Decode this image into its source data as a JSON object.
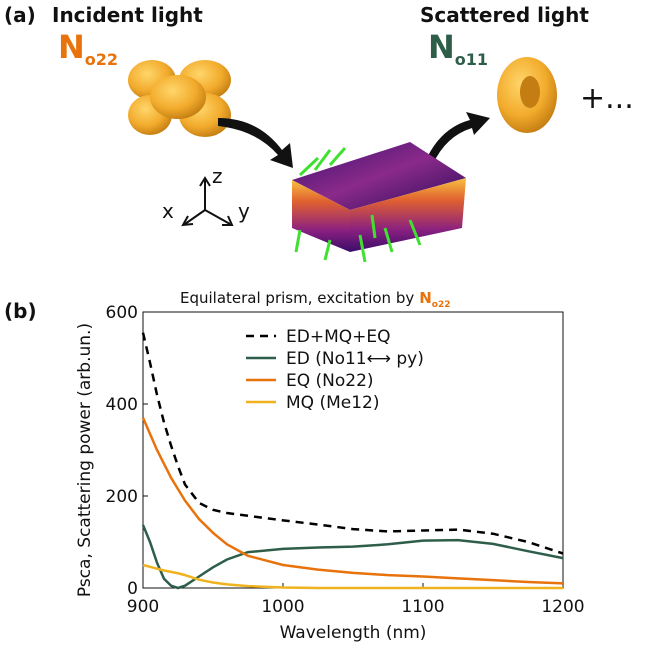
{
  "panel_a": {
    "label": "(a)",
    "incident": "Incident light",
    "scattered": "Scattered light",
    "incident_mode": {
      "symbol": "N",
      "sub": "o22"
    },
    "scattered_mode": {
      "symbol": "N",
      "sub": "o11"
    },
    "plus": "+...",
    "axes": {
      "z": "z",
      "x": "x",
      "y": "y"
    }
  },
  "panel_b_label": "(b)",
  "chart_data": {
    "type": "line",
    "title": "Equilateral prism, excitation by",
    "title_mode": {
      "symbol": "N",
      "sub": "o22"
    },
    "xlabel": "Wavelength (nm)",
    "ylabel": "Psca, Scattering power (arb.un.)",
    "x": [
      900,
      905,
      910,
      915,
      920,
      925,
      930,
      940,
      950,
      960,
      975,
      1000,
      1025,
      1050,
      1075,
      1100,
      1125,
      1150,
      1175,
      1200
    ],
    "series": [
      {
        "name": "ED+MQ+EQ",
        "color": "#000000",
        "dashed": true,
        "values": [
          555,
          490,
          420,
          360,
          310,
          265,
          225,
          185,
          170,
          163,
          157,
          147,
          138,
          128,
          123,
          125,
          127,
          118,
          100,
          75
        ]
      },
      {
        "name": "ED (No11⟷ py)",
        "color": "#2e5e4a",
        "values": [
          137,
          100,
          55,
          20,
          5,
          0,
          5,
          25,
          45,
          62,
          78,
          85,
          88,
          90,
          95,
          103,
          104,
          96,
          80,
          65
        ]
      },
      {
        "name": "EQ (No22)",
        "color": "#e8720c",
        "values": [
          370,
          335,
          300,
          270,
          240,
          215,
          190,
          150,
          120,
          95,
          70,
          50,
          40,
          33,
          28,
          25,
          21,
          17,
          13,
          10
        ]
      },
      {
        "name": "MQ (Me12)",
        "color": "#f0b21e",
        "values": [
          50,
          46,
          42,
          38,
          35,
          32,
          28,
          18,
          12,
          8,
          4,
          1,
          0,
          0,
          0,
          0,
          0,
          0,
          0,
          0
        ]
      }
    ],
    "xlim": [
      900,
      1200
    ],
    "ylim": [
      0,
      600
    ],
    "xticks": [
      900,
      1000,
      1100,
      1200
    ],
    "yticks": [
      0,
      200,
      400,
      600
    ]
  }
}
